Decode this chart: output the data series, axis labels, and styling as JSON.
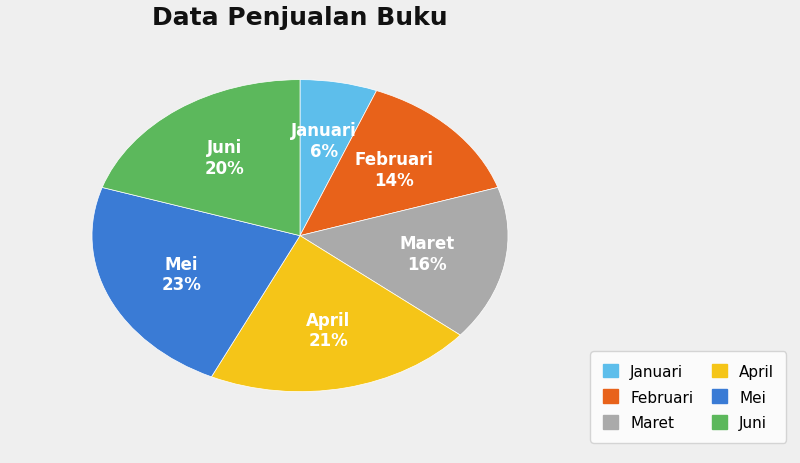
{
  "title": "Data Penjualan Buku",
  "labels": [
    "Januari",
    "Februari",
    "Maret",
    "April",
    "Mei",
    "Juni"
  ],
  "values": [
    6,
    14,
    16,
    21,
    23,
    20
  ],
  "colors": [
    "#5DBEEB",
    "#E8621A",
    "#AAAAAA",
    "#F5C518",
    "#3A7BD5",
    "#5CB85C"
  ],
  "background_color": "#EFEFEF",
  "title_fontsize": 18,
  "label_fontsize": 12,
  "legend_fontsize": 11,
  "text_color": "#FFFFFF"
}
